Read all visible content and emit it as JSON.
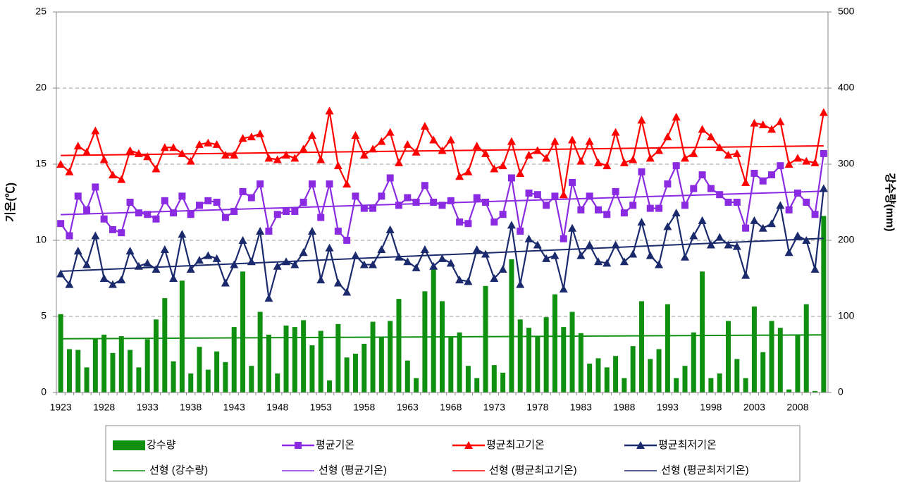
{
  "chart_data": {
    "type": "combo",
    "categories": [
      "1923",
      null,
      null,
      null,
      null,
      "1928",
      null,
      null,
      null,
      null,
      "1933",
      null,
      null,
      null,
      null,
      "1938",
      null,
      null,
      null,
      null,
      "1943",
      null,
      null,
      null,
      null,
      "1948",
      null,
      null,
      null,
      null,
      "1953",
      null,
      null,
      null,
      null,
      "1958",
      null,
      null,
      null,
      null,
      "1963",
      null,
      null,
      null,
      null,
      "1968",
      null,
      null,
      null,
      null,
      "1973",
      null,
      null,
      null,
      null,
      "1978",
      null,
      null,
      null,
      null,
      "1983",
      null,
      null,
      null,
      null,
      "1988",
      null,
      null,
      null,
      null,
      "1993",
      null,
      null,
      null,
      null,
      "1998",
      null,
      null,
      null,
      null,
      "2003",
      null,
      null,
      null,
      null,
      "2008",
      null,
      null,
      null
    ],
    "ylabel": "기온(℃)",
    "y2label": "강수량(mm)",
    "ylim": [
      0,
      25
    ],
    "yticks": [
      0,
      5,
      10,
      15,
      20,
      25
    ],
    "y2lim": [
      0,
      500
    ],
    "y2ticks": [
      0,
      100,
      200,
      300,
      400,
      500
    ],
    "grid": true,
    "series": [
      {
        "name": "강수량",
        "type": "bar",
        "axis": "y2",
        "color": "#109010",
        "values": [
          103,
          57,
          56,
          33,
          71,
          76,
          52,
          74,
          56,
          33,
          70,
          96,
          124,
          41,
          147,
          25,
          60,
          30,
          54,
          40,
          86,
          159,
          35,
          106,
          76,
          25,
          88,
          86,
          95,
          62,
          81,
          16,
          90,
          46,
          51,
          64,
          93,
          73,
          94,
          123,
          42,
          19,
          133,
          163,
          120,
          74,
          79,
          35,
          19,
          140,
          36,
          26,
          175,
          96,
          85,
          74,
          99,
          129,
          86,
          106,
          78,
          38,
          45,
          33,
          48,
          19,
          61,
          120,
          44,
          57,
          116,
          19,
          35,
          79,
          159,
          19,
          25,
          94,
          44,
          19,
          113,
          53,
          94,
          85,
          4,
          75,
          116,
          2,
          232
        ]
      },
      {
        "name": "평균기온",
        "type": "line",
        "marker": "square",
        "color": "#8a2be2",
        "values": [
          11.1,
          10.3,
          12.9,
          12.0,
          13.5,
          11.4,
          10.7,
          10.5,
          12.5,
          11.8,
          11.7,
          11.4,
          12.6,
          11.8,
          12.9,
          11.7,
          12.3,
          12.6,
          12.5,
          11.5,
          11.9,
          13.2,
          12.8,
          13.7,
          10.6,
          11.7,
          11.9,
          11.9,
          12.5,
          13.7,
          11.5,
          13.7,
          10.6,
          10.0,
          12.9,
          12.1,
          12.1,
          12.9,
          14.1,
          12.3,
          12.8,
          12.5,
          13.6,
          12.5,
          12.3,
          12.6,
          11.2,
          11.1,
          12.8,
          12.5,
          11.2,
          11.7,
          14.1,
          10.6,
          13.1,
          13.0,
          12.3,
          12.9,
          10.1,
          13.8,
          12.0,
          12.9,
          12.0,
          11.7,
          13.2,
          11.8,
          12.3,
          14.5,
          12.1,
          12.1,
          13.7,
          14.9,
          12.3,
          13.4,
          14.3,
          13.4,
          13.0,
          12.5,
          12.5,
          10.8,
          14.4,
          13.9,
          14.3,
          14.9,
          12.0,
          13.1,
          12.5,
          11.7,
          15.7
        ]
      },
      {
        "name": "평균최고기온",
        "type": "line",
        "marker": "triangle",
        "color": "#ff0000",
        "values": [
          15.0,
          14.5,
          16.2,
          15.8,
          17.2,
          15.3,
          14.3,
          14.0,
          15.9,
          15.7,
          15.5,
          14.7,
          16.1,
          16.1,
          15.7,
          15.2,
          16.3,
          16.4,
          16.3,
          15.6,
          15.6,
          16.7,
          16.8,
          17.0,
          15.4,
          15.3,
          15.6,
          15.4,
          16.0,
          16.9,
          15.3,
          18.5,
          14.9,
          13.7,
          16.9,
          15.6,
          16.0,
          16.5,
          17.1,
          15.1,
          16.3,
          15.8,
          17.5,
          16.6,
          15.9,
          16.6,
          14.2,
          14.5,
          16.2,
          15.7,
          14.7,
          14.9,
          16.5,
          14.4,
          15.6,
          15.9,
          15.4,
          16.5,
          13.0,
          16.6,
          15.2,
          16.5,
          15.1,
          14.9,
          17.1,
          15.1,
          15.3,
          17.9,
          15.4,
          15.9,
          16.8,
          18.1,
          15.4,
          15.7,
          17.3,
          16.8,
          16.1,
          15.6,
          15.7,
          13.8,
          17.7,
          17.6,
          17.3,
          17.8,
          15.0,
          15.4,
          15.2,
          15.1,
          18.4
        ]
      },
      {
        "name": "평균최저기온",
        "type": "line",
        "marker": "triangle",
        "color": "#1a2a6c",
        "values": [
          7.8,
          7.1,
          9.3,
          8.4,
          10.3,
          7.5,
          7.1,
          7.4,
          9.3,
          8.3,
          8.5,
          8.1,
          9.4,
          7.5,
          10.4,
          8.1,
          8.7,
          9.0,
          8.8,
          7.2,
          8.4,
          10.0,
          8.6,
          10.6,
          6.2,
          8.3,
          8.6,
          8.4,
          9.2,
          10.6,
          7.4,
          9.5,
          7.2,
          6.6,
          9.0,
          8.4,
          8.4,
          9.4,
          10.7,
          8.9,
          8.6,
          8.2,
          9.4,
          8.3,
          8.8,
          8.5,
          7.4,
          7.3,
          9.4,
          9.1,
          7.5,
          8.1,
          11.0,
          7.1,
          10.1,
          9.7,
          8.8,
          9.0,
          6.8,
          10.8,
          9.0,
          9.7,
          8.6,
          8.5,
          9.7,
          8.6,
          9.1,
          11.2,
          9.0,
          8.4,
          10.9,
          11.8,
          8.9,
          10.3,
          11.3,
          9.7,
          10.2,
          9.7,
          9.6,
          7.7,
          11.3,
          10.8,
          11.1,
          12.3,
          9.2,
          10.3,
          10.0,
          8.1,
          13.4
        ]
      }
    ],
    "trendlines": [
      {
        "name": "선형 (강수량)",
        "color": "#109010"
      },
      {
        "name": "선형 (평균기온)",
        "color": "#8a2be2"
      },
      {
        "name": "선형 (평균최고기온)",
        "color": "#ff0000"
      },
      {
        "name": "선형 (평균최저기온)",
        "color": "#1a2a6c"
      }
    ]
  }
}
